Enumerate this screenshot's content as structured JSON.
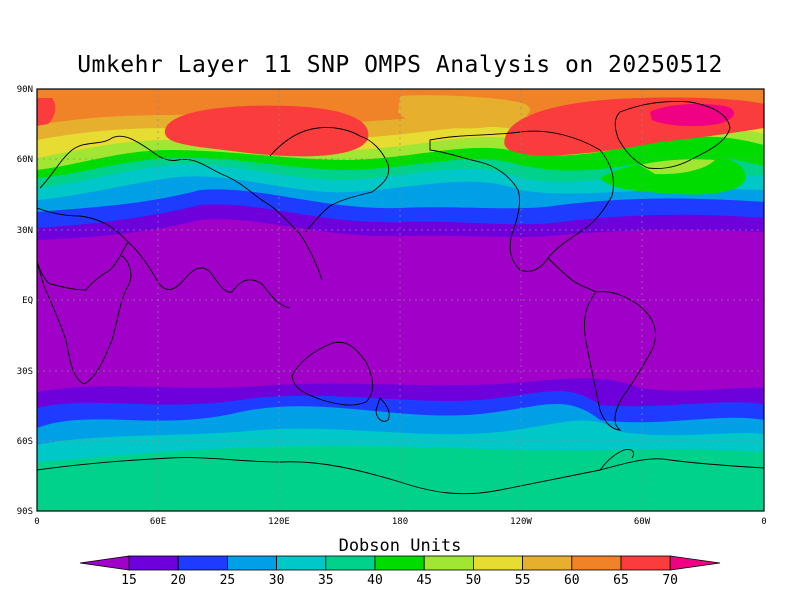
{
  "title": "Umkehr Layer 11 SNP OMPS Analysis on 20250512",
  "lat_labels": [
    "90N",
    "60N",
    "30N",
    "EQ",
    "30S",
    "60S",
    "90S"
  ],
  "lon_labels": [
    "0",
    "60E",
    "120E",
    "180",
    "120W",
    "60W",
    "0"
  ],
  "colorbar": {
    "title": "Dobson Units",
    "levels": [
      "15",
      "20",
      "25",
      "30",
      "35",
      "40",
      "45",
      "50",
      "55",
      "60",
      "65",
      "70"
    ],
    "colors": [
      "#a000c8",
      "#6e00dc",
      "#1e3cff",
      "#00a0e6",
      "#00c8c8",
      "#00d28c",
      "#00dc00",
      "#a0e632",
      "#e6dc32",
      "#e6af2d",
      "#f08228",
      "#fa3c3c",
      "#f00082"
    ]
  },
  "map": {
    "fields": [
      {
        "name": "band-south-60",
        "color": "#00d28c"
      },
      {
        "name": "band-south-55",
        "color": "#00c8c8"
      },
      {
        "name": "band-south-50",
        "color": "#00a0e6"
      },
      {
        "name": "band-south-45",
        "color": "#1e3cff"
      },
      {
        "name": "band-south-40",
        "color": "#6e00dc"
      },
      {
        "name": "tropics",
        "color": "#a000c8"
      },
      {
        "name": "band-north-35",
        "color": "#6e00dc"
      },
      {
        "name": "band-north-40",
        "color": "#1e3cff"
      },
      {
        "name": "band-north-45",
        "color": "#00a0e6"
      },
      {
        "name": "band-north-50",
        "color": "#00c8c8"
      },
      {
        "name": "band-north-55",
        "color": "#00d28c"
      },
      {
        "name": "band-north-60",
        "color": "#00dc00"
      },
      {
        "name": "band-north-65",
        "color": "#a0e632"
      },
      {
        "name": "band-north-70",
        "color": "#e6dc32"
      },
      {
        "name": "band-north-75",
        "color": "#e6af2d"
      },
      {
        "name": "polar-north",
        "color": "#f08228"
      },
      {
        "name": "high-eurasia",
        "color": "#fa3c3c"
      },
      {
        "name": "high-greenland",
        "color": "#fa3c3c"
      },
      {
        "name": "peak-greenland",
        "color": "#f00082"
      },
      {
        "name": "high-west",
        "color": "#fa3c3c"
      },
      {
        "name": "pacific-tongue",
        "color": "#e6af2d"
      },
      {
        "name": "atlantic-green",
        "color": "#00dc00"
      },
      {
        "name": "atlantic-yellowgreen",
        "color": "#a0e632"
      }
    ]
  }
}
